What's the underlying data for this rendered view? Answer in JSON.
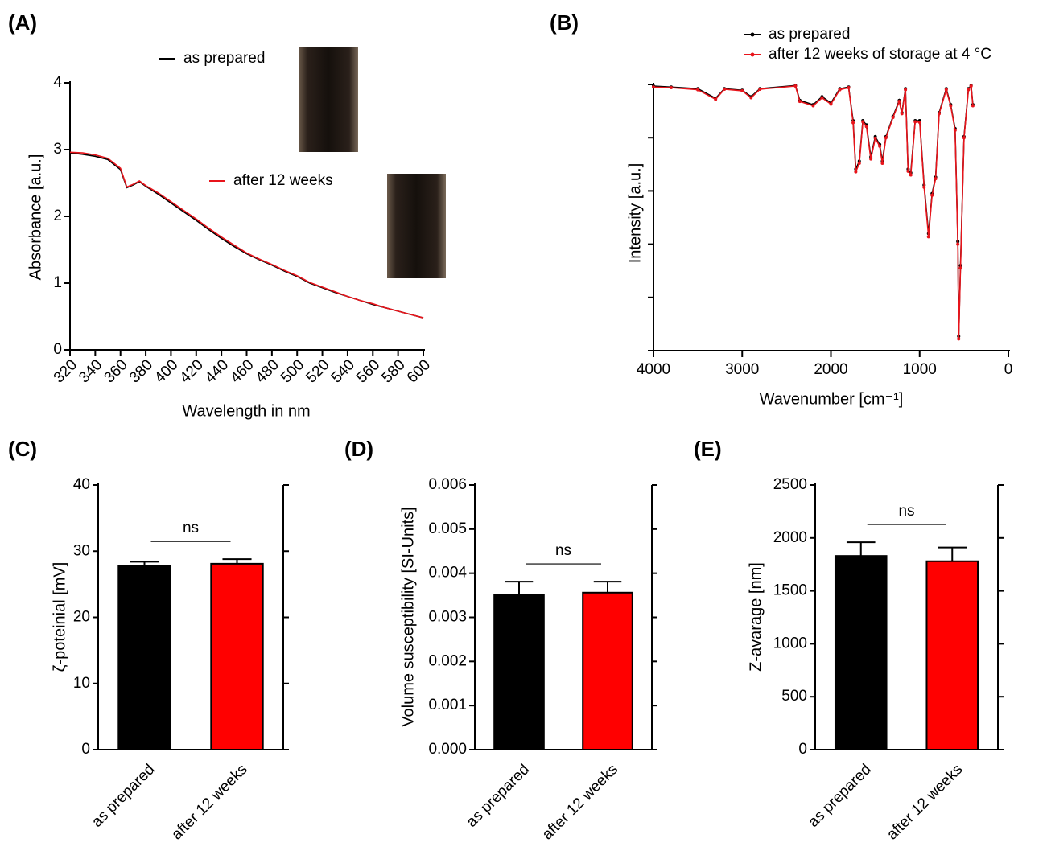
{
  "chart_data": [
    {
      "type": "line",
      "panel_label": "(A)",
      "x_label": "Wavelength in nm",
      "y_label": "Absorbance [a.u.]",
      "x": [
        320,
        330,
        340,
        350,
        360,
        365,
        370,
        375,
        380,
        390,
        400,
        410,
        420,
        430,
        440,
        450,
        460,
        470,
        480,
        490,
        500,
        510,
        520,
        530,
        540,
        550,
        560,
        570,
        580,
        590,
        600
      ],
      "series": [
        {
          "name": "as prepared",
          "color": "#000000",
          "values": [
            2.95,
            2.93,
            2.9,
            2.85,
            2.7,
            2.43,
            2.47,
            2.52,
            2.45,
            2.33,
            2.2,
            2.07,
            1.94,
            1.8,
            1.67,
            1.55,
            1.44,
            1.35,
            1.27,
            1.18,
            1.1,
            1.0,
            0.93,
            0.86,
            0.8,
            0.74,
            0.68,
            0.63,
            0.58,
            0.53,
            0.48
          ]
        },
        {
          "name": "after 12 weeks",
          "color": "#e8141b",
          "values": [
            2.96,
            2.95,
            2.92,
            2.87,
            2.72,
            2.44,
            2.48,
            2.53,
            2.46,
            2.35,
            2.22,
            2.09,
            1.96,
            1.82,
            1.69,
            1.57,
            1.45,
            1.36,
            1.28,
            1.19,
            1.11,
            1.01,
            0.94,
            0.87,
            0.8,
            0.74,
            0.69,
            0.63,
            0.58,
            0.53,
            0.48
          ]
        }
      ],
      "xlim": [
        320,
        600
      ],
      "xticks": [
        320,
        340,
        360,
        380,
        400,
        420,
        440,
        460,
        480,
        500,
        520,
        540,
        560,
        580,
        600
      ],
      "ylim": [
        0,
        4
      ],
      "yticks": [
        0,
        1,
        2,
        3,
        4
      ],
      "ytick_labels": true,
      "markers": false
    },
    {
      "type": "line",
      "panel_label": "(B)",
      "x_label": "Wavenumber [cm⁻¹]",
      "y_label": "Intensity [a.u.]",
      "x": [
        4000,
        3800,
        3500,
        3300,
        3200,
        3000,
        2900,
        2800,
        2400,
        2350,
        2200,
        2100,
        2000,
        1900,
        1800,
        1750,
        1720,
        1680,
        1640,
        1600,
        1550,
        1500,
        1450,
        1420,
        1380,
        1300,
        1230,
        1200,
        1160,
        1130,
        1100,
        1050,
        1000,
        950,
        900,
        860,
        820,
        780,
        700,
        650,
        600,
        570,
        560,
        540,
        500,
        450,
        420,
        400
      ],
      "series": [
        {
          "name": "as prepared",
          "color": "#000000",
          "values": [
            4.97,
            4.95,
            4.92,
            4.74,
            4.92,
            4.89,
            4.77,
            4.92,
            4.98,
            4.7,
            4.62,
            4.77,
            4.65,
            4.92,
            4.95,
            4.32,
            3.41,
            3.56,
            4.32,
            4.24,
            3.64,
            4.02,
            3.87,
            3.56,
            4.02,
            4.4,
            4.7,
            4.47,
            4.92,
            3.41,
            3.34,
            4.32,
            4.32,
            3.11,
            2.2,
            2.95,
            3.26,
            4.47,
            4.92,
            4.62,
            4.17,
            2.05,
            0.27,
            1.6,
            4.02,
            4.92,
            4.98,
            4.62
          ]
        },
        {
          "name": "after 12 weeks of storage at 4 °C",
          "color": "#e8141b",
          "values": [
            4.95,
            4.94,
            4.9,
            4.72,
            4.91,
            4.88,
            4.75,
            4.91,
            4.97,
            4.68,
            4.6,
            4.75,
            4.63,
            4.9,
            4.94,
            4.28,
            3.36,
            3.52,
            4.3,
            4.21,
            3.6,
            3.99,
            3.84,
            3.52,
            4.0,
            4.38,
            4.68,
            4.45,
            4.9,
            3.37,
            3.3,
            4.3,
            4.29,
            3.07,
            2.14,
            2.92,
            3.23,
            4.45,
            4.9,
            4.6,
            4.14,
            2.0,
            0.22,
            1.55,
            4.0,
            4.9,
            4.97,
            4.6
          ]
        }
      ],
      "xlim": [
        4000,
        0
      ],
      "xticks": [
        4000,
        3000,
        2000,
        1000,
        0
      ],
      "ylim": [
        0,
        5
      ],
      "yticks": [
        0,
        1,
        2,
        3,
        4,
        5
      ],
      "ytick_labels": false,
      "markers": true
    },
    {
      "type": "bar",
      "panel_label": "(C)",
      "y_label": "ζ-poteinial [mV]",
      "annotation": "ns",
      "categories": [
        "as prepared",
        "after 12 weeks"
      ],
      "values": [
        27.8,
        28.1
      ],
      "errors": [
        0.6,
        0.7
      ],
      "colors": [
        "#000000",
        "#ff0000"
      ],
      "ylim": [
        0,
        40
      ],
      "yticks": [
        0,
        10,
        20,
        30,
        40
      ]
    },
    {
      "type": "bar",
      "panel_label": "(D)",
      "y_label": "Volume susceptibility  [SI-Units]",
      "annotation": "ns",
      "categories": [
        "as prepared",
        "after 12 weeks"
      ],
      "values": [
        0.00351,
        0.00356
      ],
      "errors": [
        0.0003,
        0.00025
      ],
      "colors": [
        "#000000",
        "#ff0000"
      ],
      "ylim": [
        0,
        0.006
      ],
      "yticks": [
        {
          "value": 0,
          "label": "0.000"
        },
        0.001,
        0.002,
        0.003,
        0.004,
        0.005,
        0.006
      ]
    },
    {
      "type": "bar",
      "panel_label": "(E)",
      "y_label": "Z-avarage [nm]",
      "annotation": "ns",
      "categories": [
        "as prepared",
        "after 12 weeks"
      ],
      "values": [
        1830,
        1780
      ],
      "errors": [
        130,
        130
      ],
      "colors": [
        "#000000",
        "#ff0000"
      ],
      "ylim": [
        0,
        2500
      ],
      "yticks": [
        0,
        500,
        1000,
        1500,
        2000,
        2500
      ]
    }
  ]
}
